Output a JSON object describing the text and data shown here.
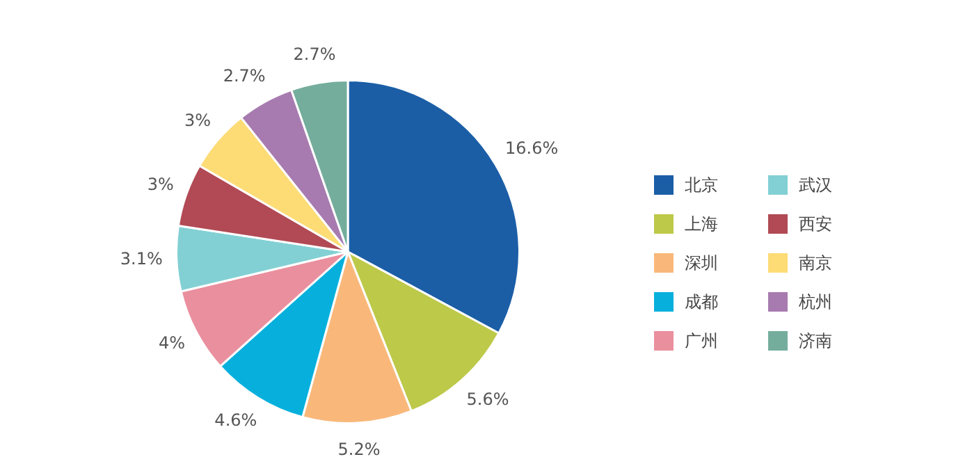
{
  "chart_data": {
    "type": "pie",
    "categories": [
      "北京",
      "上海",
      "深圳",
      "成都",
      "广州",
      "武汉",
      "西安",
      "南京",
      "杭州",
      "济南"
    ],
    "values": [
      16.6,
      5.6,
      5.2,
      4.6,
      4,
      3.1,
      3,
      3,
      2.7,
      2.7
    ],
    "colors": [
      "#1b5ea6",
      "#bdc949",
      "#f9b87a",
      "#07b0dc",
      "#ea8f9e",
      "#82d0d4",
      "#b14a55",
      "#fddc75",
      "#a77bb0",
      "#74ad9c"
    ],
    "value_labels": [
      "16.6%",
      "5.6%",
      "5.2%",
      "4.6%",
      "4%",
      "3.1%",
      "3%",
      "3%",
      "2.7%",
      "2.7%"
    ],
    "legend": "right"
  }
}
